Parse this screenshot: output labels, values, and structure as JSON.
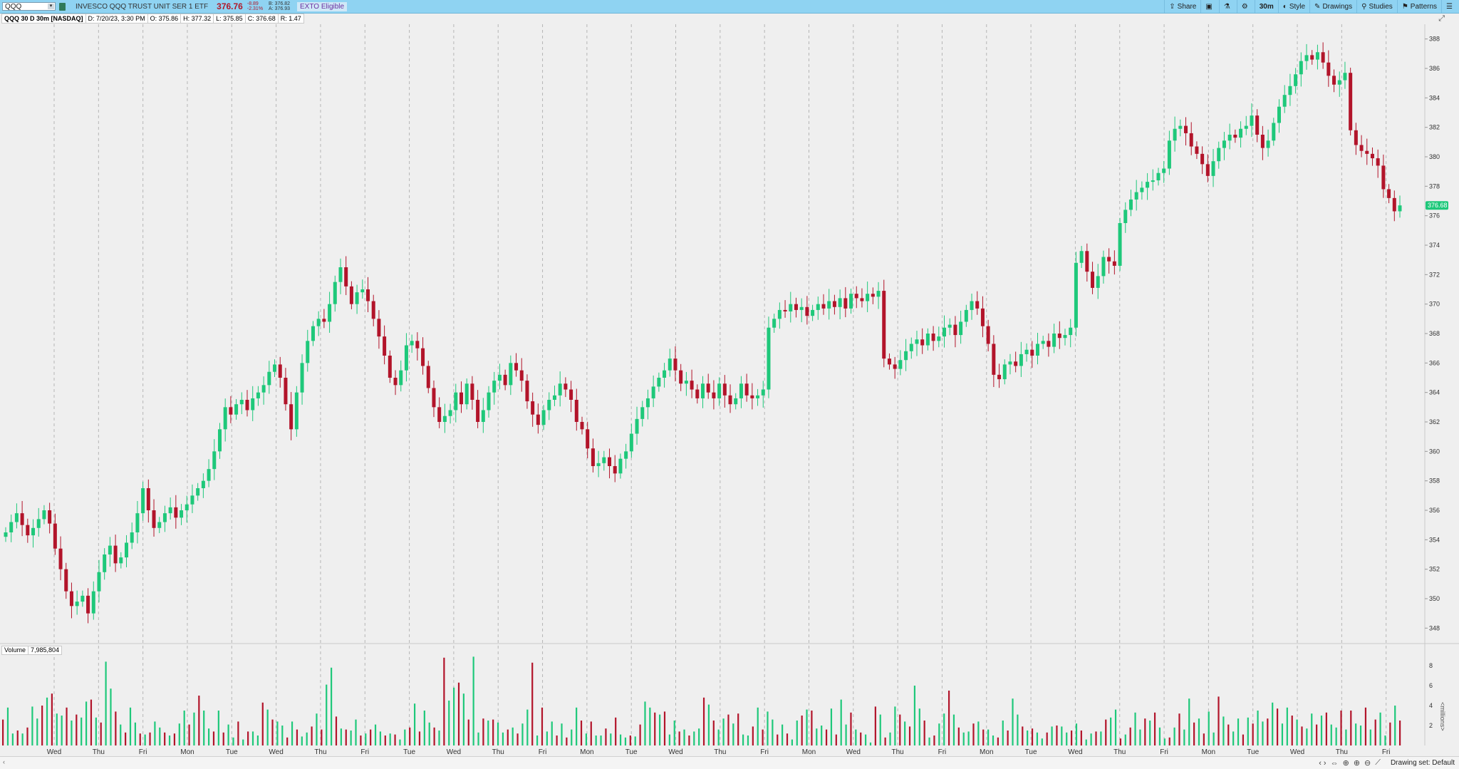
{
  "toolbar": {
    "symbol": "QQQ",
    "description": "INVESCO QQQ TRUST UNIT SER 1 ETF",
    "last": "376.76",
    "change": "-8.89",
    "change_pct": "-2.31%",
    "bid": "B: 376.82",
    "ask": "A: 376.93",
    "exto": "EXTO Eligible",
    "buttons": {
      "share": "Share",
      "interval": "30m",
      "style": "Style",
      "drawings": "Drawings",
      "studies": "Studies",
      "patterns": "Patterns"
    },
    "icons": [
      "share-icon",
      "snapshot-icon",
      "flask-icon",
      "gear-icon",
      "style-icon",
      "pencil-icon",
      "studies-icon",
      "patterns-icon",
      "menu-icon"
    ]
  },
  "info": {
    "title": "QQQ 30 D 30m [NASDAQ]",
    "date": "D: 7/20/23, 3:30 PM",
    "open": "O: 375.86",
    "high": "H: 377.32",
    "low": "L: 375.85",
    "close": "C: 376.68",
    "range": "R: 1.47"
  },
  "volume_info": {
    "label": "Volume",
    "value": "7,985,804"
  },
  "bottom": {
    "drawing_set": "Drawing set: Default"
  },
  "colors": {
    "up": "#1ec87a",
    "down": "#b2142a",
    "price_tag": "#1ec87a",
    "grid": "#b5b5b5"
  },
  "chart_data": {
    "type": "candlestick",
    "price_axis": {
      "ylim": [
        347,
        389
      ],
      "ticks": [
        348,
        350,
        352,
        354,
        356,
        358,
        360,
        362,
        364,
        366,
        368,
        370,
        372,
        374,
        376,
        378,
        380,
        382,
        384,
        386,
        388
      ]
    },
    "volume_axis": {
      "ylim": [
        0,
        9
      ],
      "ticks": [
        2,
        4,
        6,
        8
      ],
      "label": "<millions>"
    },
    "x_axis_labels": [
      "Wed",
      "Thu",
      "Fri",
      "Mon",
      "Tue",
      "Wed",
      "Thu",
      "Fri",
      "Tue",
      "Wed",
      "Thu",
      "Fri",
      "Mon",
      "Tue",
      "Wed",
      "Thu",
      "Fri",
      "Mon",
      "Wed",
      "Thu",
      "Fri",
      "Mon",
      "Tue",
      "Wed",
      "Thu",
      "Fri",
      "Mon",
      "Tue",
      "Wed",
      "Thu",
      "Fri"
    ],
    "current_price_label": "376.68",
    "close_path": [
      354.5,
      355.2,
      355.8,
      355.0,
      354.3,
      354.8,
      355.4,
      356.0,
      355.1,
      353.4,
      352.0,
      350.5,
      349.5,
      349.8,
      350.2,
      349.0,
      350.5,
      351.8,
      353.0,
      353.6,
      352.4,
      352.8,
      353.8,
      354.5,
      355.8,
      357.5,
      356.0,
      354.8,
      355.2,
      355.8,
      356.2,
      355.5,
      356.0,
      356.4,
      357.0,
      357.5,
      358.0,
      358.8,
      360.0,
      361.5,
      363.0,
      362.5,
      363.2,
      363.5,
      362.8,
      363.6,
      364.0,
      364.5,
      365.4,
      365.9,
      365.0,
      363.2,
      361.5,
      364.0,
      366.0,
      367.5,
      368.5,
      369.0,
      368.8,
      370.0,
      371.5,
      372.5,
      371.2,
      370.0,
      370.8,
      371.0,
      370.2,
      369.0,
      367.8,
      366.5,
      365.0,
      364.5,
      365.5,
      367.2,
      367.5,
      367.0,
      365.8,
      364.3,
      363.0,
      362.0,
      362.4,
      362.8,
      364.0,
      363.2,
      364.6,
      363.5,
      362.0,
      362.8,
      364.0,
      364.8,
      365.2,
      364.5,
      366.0,
      365.5,
      364.8,
      363.4,
      362.5,
      361.8,
      362.8,
      363.5,
      363.8,
      364.6,
      364.2,
      363.5,
      362.0,
      361.5,
      360.2,
      359.0,
      359.2,
      359.6,
      359.0,
      358.5,
      359.5,
      360.0,
      361.2,
      362.2,
      363.0,
      363.6,
      364.4,
      365.0,
      365.5,
      366.3,
      365.5,
      364.6,
      364.8,
      364.2,
      363.6,
      364.6,
      364.0,
      363.6,
      364.6,
      363.8,
      363.2,
      363.6,
      364.6,
      363.8,
      363.6,
      363.8,
      364.2,
      368.4,
      369.0,
      369.6,
      369.5,
      370.0,
      369.6,
      369.8,
      369.2,
      369.6,
      370.0,
      369.7,
      370.2,
      369.8,
      370.4,
      369.7,
      370.7,
      370.4,
      370.2,
      370.7,
      370.5,
      370.9,
      366.3,
      365.9,
      365.6,
      366.2,
      366.8,
      367.3,
      367.6,
      367.2,
      368.0,
      367.5,
      367.8,
      368.4,
      368.6,
      367.9,
      368.8,
      369.6,
      370.2,
      369.7,
      368.5,
      367.3,
      365.2,
      364.9,
      365.9,
      366.1,
      365.8,
      366.6,
      366.9,
      366.5,
      367.3,
      367.5,
      367.1,
      368.0,
      367.7,
      367.9,
      368.4,
      372.8,
      373.6,
      372.2,
      371.1,
      371.9,
      373.2,
      372.9,
      372.6,
      375.5,
      376.4,
      377.1,
      377.6,
      377.9,
      378.3,
      378.4,
      378.9,
      379.2,
      381.1,
      381.9,
      382.1,
      381.6,
      380.7,
      380.2,
      379.5,
      378.7,
      379.7,
      380.6,
      381.1,
      381.5,
      381.3,
      381.9,
      382.1,
      382.8,
      381.5,
      380.6,
      381.1,
      382.3,
      383.4,
      384.2,
      384.8,
      385.6,
      386.5,
      386.9,
      386.6,
      387.1,
      386.4,
      385.5,
      384.9,
      385.2,
      385.7,
      381.8,
      380.8,
      380.4,
      380.2,
      379.9,
      379.4,
      377.8,
      377.2,
      376.3,
      376.7
    ],
    "volume_millions": [
      2.6,
      3.8,
      1.2,
      1.5,
      1.2,
      1.8,
      3.9,
      2.7,
      4.0,
      4.8,
      5.2,
      3.2,
      3.0,
      3.8,
      2.5,
      3.1,
      2.8,
      4.4,
      4.6,
      2.8,
      2.3,
      8.4,
      5.7,
      3.4,
      2.1,
      1.3,
      3.8,
      2.3,
      1.2,
      1.1,
      1.3,
      2.4,
      1.8,
      1.3,
      1.0,
      1.2,
      2.2,
      3.5,
      2.1,
      3.3,
      5.0,
      3.5,
      1.7,
      1.4,
      3.5,
      1.3,
      2.1,
      0.8,
      2.4,
      0.6,
      1.4,
      1.4,
      1.0,
      4.3,
      3.6,
      2.6,
      2.4,
      2.0,
      0.8,
      2.4,
      1.6,
      0.9,
      1.3,
      1.9,
      3.2,
      1.6,
      6.1,
      7.8,
      2.9,
      1.7,
      1.6,
      1.5,
      2.6,
      1.0,
      1.2,
      1.6,
      2.1,
      1.4,
      1.0,
      1.2,
      1.1,
      0.6,
      1.6,
      1.8,
      4.2,
      1.4,
      3.5,
      2.3,
      1.8,
      1.5,
      8.8,
      4.5,
      5.8,
      6.3,
      5.2,
      2.6,
      8.9,
      1.3,
      2.7,
      2.5,
      2.6,
      2.3,
      1.3,
      1.6,
      1.8,
      1.2,
      2.2,
      3.6,
      8.3,
      1.0,
      3.8,
      1.4,
      2.4,
      1.0,
      2.2,
      0.8,
      1.6,
      3.8,
      2.5,
      1.2,
      2.4,
      1.0,
      1.0,
      1.7,
      1.2,
      2.8,
      1.1,
      0.8,
      1.0,
      0.9,
      2.1,
      4.4,
      3.8,
      3.3,
      3.1,
      3.4,
      1.1,
      2.5,
      1.4,
      1.6,
      1.0,
      1.4,
      1.7,
      4.8,
      4.1,
      2.5,
      1.6,
      2.7,
      3.1,
      2.2,
      3.2,
      1.1,
      1.0,
      1.9,
      3.8,
      1.6,
      3.4,
      2.6,
      1.1,
      2.1,
      1.2,
      0.6,
      2.5,
      3.0,
      3.6,
      3.5,
      1.7,
      2.0,
      1.6,
      3.7,
      1.1,
      4.6,
      2.1,
      3.3,
      1.6,
      1.3,
      1.1,
      0.3,
      3.9,
      3.1,
      0.8,
      1.3,
      3.9,
      3.1,
      2.4,
      1.9,
      6.0,
      3.7,
      2.5,
      0.8,
      1.0,
      2.2,
      3.2,
      5.5,
      3.1,
      1.8,
      1.3,
      1.4,
      2.2,
      2.4,
      1.6,
      1.6,
      1.0,
      0.8,
      2.5,
      1.5,
      4.7,
      3.1,
      1.9,
      1.5,
      1.7,
      1.3,
      0.7,
      1.3,
      1.9,
      2.0,
      1.9,
      1.3,
      1.5,
      2.2,
      1.5,
      0.6,
      1.2,
      1.4,
      1.4,
      2.6,
      2.8,
      3.6,
      0.7,
      1.1,
      1.8,
      3.3,
      1.6,
      2.7,
      2.5,
      3.3,
      1.8,
      0.7,
      0.8,
      1.8,
      3.2,
      1.6,
      4.7,
      2.3,
      2.7,
      1.2,
      3.4,
      1.3,
      4.9,
      2.9,
      2.1,
      1.4,
      2.7,
      1.1,
      2.8,
      2.2,
      3.5,
      2.4,
      2.7,
      4.3,
      3.7,
      2.2,
      3.8,
      3.0,
      2.6,
      1.9,
      1.7,
      3.2,
      2.1,
      3.0,
      3.3,
      2.1,
      1.8,
      3.5,
      1.6,
      3.5,
      2.2,
      2.0,
      3.8,
      1.6,
      2.6,
      3.3,
      1.0,
      2.3,
      4.0,
      2.5
    ]
  }
}
